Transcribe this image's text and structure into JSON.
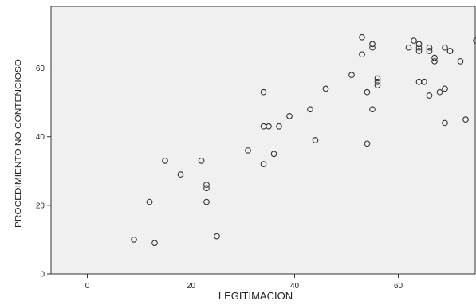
{
  "chart_data": {
    "type": "scatter",
    "xlabel": "LEGITIMACION",
    "ylabel": "PROCEDIMIENTO NO CONTENCIOSO",
    "xlim": [
      -7,
      75
    ],
    "ylim": [
      0,
      78
    ],
    "xticks": [
      0,
      20,
      40,
      60
    ],
    "yticks": [
      0,
      20,
      40,
      60
    ],
    "grid": false,
    "colors": {
      "plot_background": "#f0f0f0",
      "marker_stroke": "#333333",
      "axis": "#333333"
    },
    "points": [
      {
        "x": 9,
        "y": 10
      },
      {
        "x": 12,
        "y": 21
      },
      {
        "x": 13,
        "y": 9
      },
      {
        "x": 15,
        "y": 33
      },
      {
        "x": 18,
        "y": 29
      },
      {
        "x": 22,
        "y": 33
      },
      {
        "x": 23,
        "y": 26
      },
      {
        "x": 23,
        "y": 25
      },
      {
        "x": 23,
        "y": 21
      },
      {
        "x": 25,
        "y": 11
      },
      {
        "x": 31,
        "y": 36
      },
      {
        "x": 34,
        "y": 53
      },
      {
        "x": 34,
        "y": 43
      },
      {
        "x": 35,
        "y": 43
      },
      {
        "x": 34,
        "y": 32
      },
      {
        "x": 36,
        "y": 35
      },
      {
        "x": 37,
        "y": 43
      },
      {
        "x": 39,
        "y": 46
      },
      {
        "x": 43,
        "y": 48
      },
      {
        "x": 44,
        "y": 39
      },
      {
        "x": 46,
        "y": 54
      },
      {
        "x": 51,
        "y": 58
      },
      {
        "x": 53,
        "y": 69
      },
      {
        "x": 53,
        "y": 64
      },
      {
        "x": 54,
        "y": 53
      },
      {
        "x": 54,
        "y": 38
      },
      {
        "x": 55,
        "y": 67
      },
      {
        "x": 55,
        "y": 66
      },
      {
        "x": 55,
        "y": 48
      },
      {
        "x": 56,
        "y": 57
      },
      {
        "x": 56,
        "y": 56
      },
      {
        "x": 56,
        "y": 55
      },
      {
        "x": 62,
        "y": 66
      },
      {
        "x": 63,
        "y": 68
      },
      {
        "x": 64,
        "y": 67
      },
      {
        "x": 64,
        "y": 66
      },
      {
        "x": 64,
        "y": 65
      },
      {
        "x": 64,
        "y": 56
      },
      {
        "x": 65,
        "y": 56
      },
      {
        "x": 65,
        "y": 56
      },
      {
        "x": 66,
        "y": 66
      },
      {
        "x": 66,
        "y": 65
      },
      {
        "x": 66,
        "y": 52
      },
      {
        "x": 67,
        "y": 63
      },
      {
        "x": 67,
        "y": 62
      },
      {
        "x": 68,
        "y": 53
      },
      {
        "x": 69,
        "y": 66
      },
      {
        "x": 69,
        "y": 54
      },
      {
        "x": 69,
        "y": 44
      },
      {
        "x": 70,
        "y": 65
      },
      {
        "x": 70,
        "y": 65
      },
      {
        "x": 72,
        "y": 62
      },
      {
        "x": 73,
        "y": 45
      },
      {
        "x": 75,
        "y": 68
      },
      {
        "x": 76,
        "y": 67
      }
    ]
  }
}
